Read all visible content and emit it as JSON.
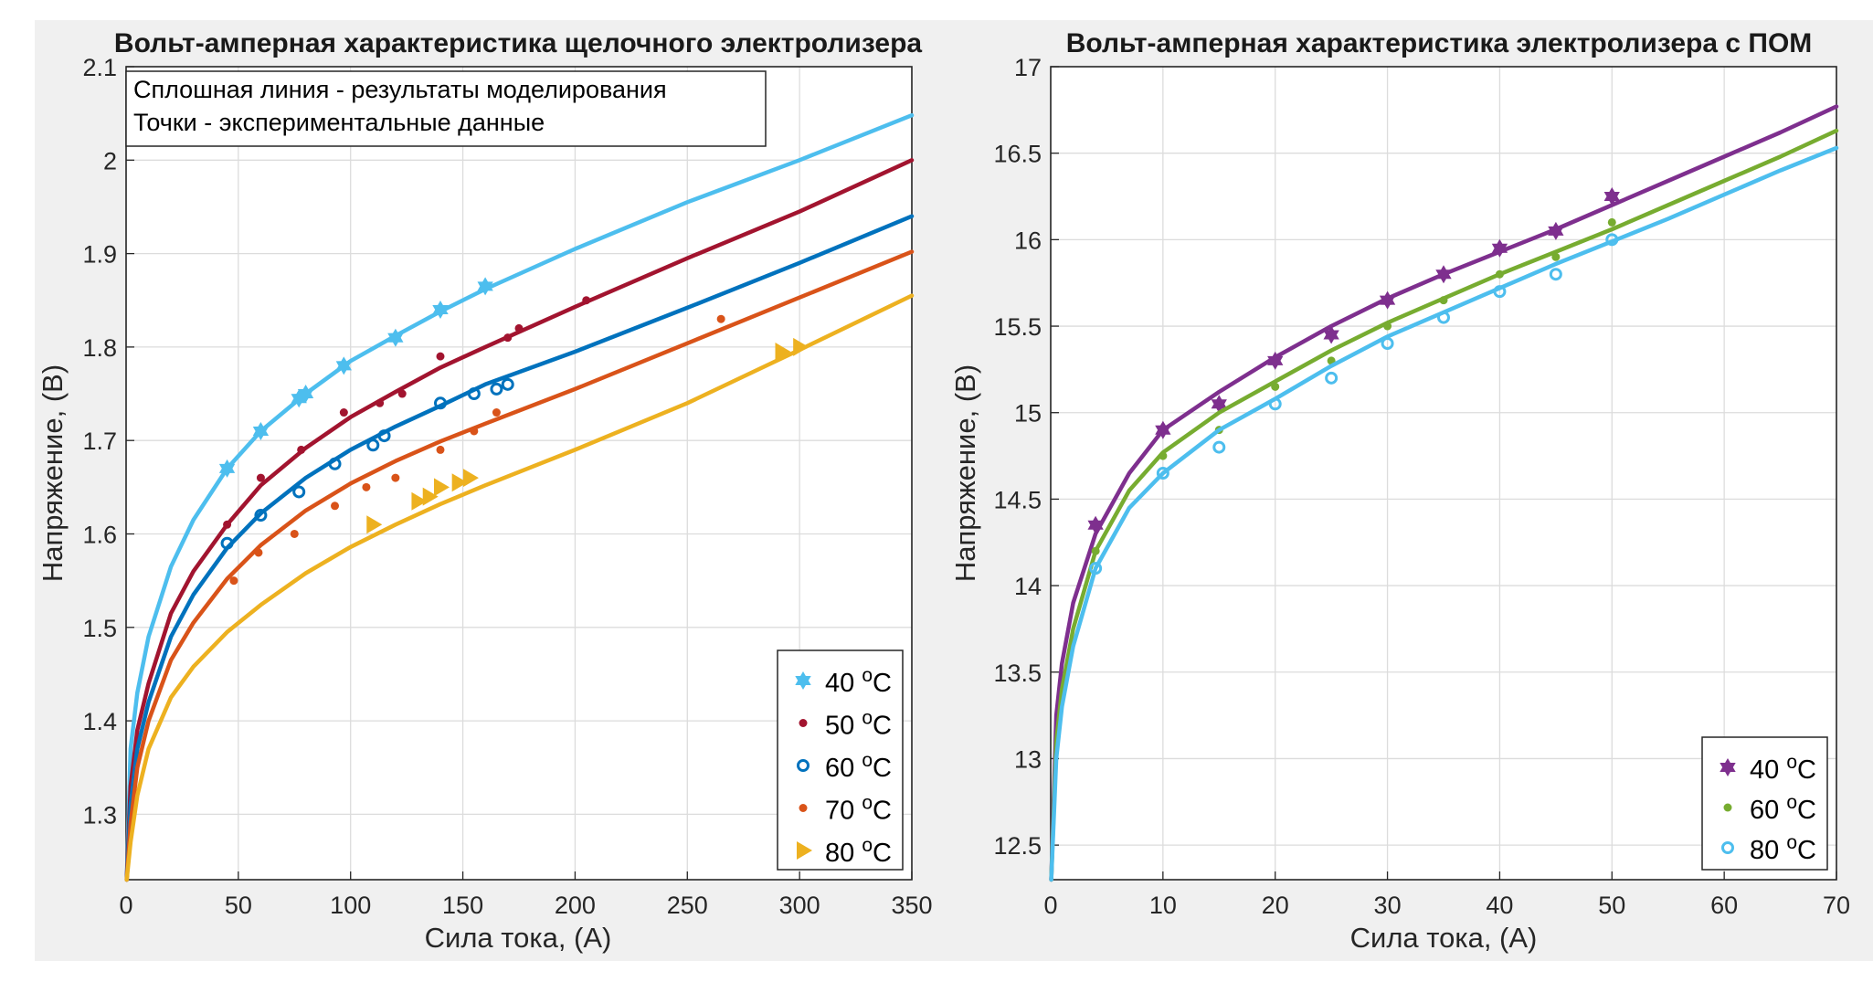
{
  "chart_data": [
    {
      "type": "line",
      "title": "Вольт-амперная характеристика щелочного электролизера",
      "xlabel": "Сила тока, (А)",
      "ylabel": "Напряжение, (В)",
      "xlim": [
        0,
        350
      ],
      "ylim": [
        1.23,
        2.1
      ],
      "xticks": [
        0,
        50,
        100,
        150,
        200,
        250,
        300,
        350
      ],
      "xtick_labels": [
        "0",
        "50",
        "100",
        "150",
        "200",
        "250",
        "300",
        "350"
      ],
      "yticks": [
        1.3,
        1.4,
        1.5,
        1.6,
        1.7,
        1.8,
        1.9,
        2.0,
        2.1
      ],
      "ytick_labels": [
        "1.3",
        "1.4",
        "1.5",
        "1.6",
        "1.7",
        "1.8",
        "1.9",
        "2",
        "2.1"
      ],
      "grid": true,
      "legend_position": "bottom-right",
      "annotation": [
        "Сплошная линия - результаты моделирования",
        "Точки - экспериментальные данные"
      ],
      "series": [
        {
          "name": "40",
          "unit": "oC",
          "color": "#4DBEEE",
          "marker": "hexagram",
          "curve": {
            "x": [
              0.3,
              2,
              5,
              10,
              20,
              30,
              45,
              60,
              80,
              100,
              120,
              140,
              160,
              200,
              250,
              300,
              350
            ],
            "y": [
              1.23,
              1.37,
              1.43,
              1.49,
              1.565,
              1.615,
              1.67,
              1.71,
              1.75,
              1.785,
              1.812,
              1.838,
              1.862,
              1.905,
              1.955,
              2.0,
              2.048
            ]
          },
          "points": {
            "x": [
              45,
              60,
              77,
              80,
              97,
              120,
              140,
              160
            ],
            "y": [
              1.67,
              1.71,
              1.745,
              1.75,
              1.78,
              1.81,
              1.84,
              1.865
            ]
          }
        },
        {
          "name": "50",
          "unit": "oC",
          "color": "#A2142F",
          "marker": "dot",
          "curve": {
            "x": [
              0.3,
              2,
              5,
              10,
              20,
              30,
              45,
              60,
              80,
              100,
              120,
              140,
              160,
              200,
              250,
              300,
              350
            ],
            "y": [
              1.23,
              1.33,
              1.39,
              1.44,
              1.515,
              1.56,
              1.61,
              1.652,
              1.692,
              1.725,
              1.752,
              1.778,
              1.8,
              1.843,
              1.895,
              1.945,
              2.0
            ]
          },
          "points": {
            "x": [
              45,
              60,
              78,
              97,
              113,
              123,
              140,
              170,
              175,
              205
            ],
            "y": [
              1.61,
              1.66,
              1.69,
              1.73,
              1.74,
              1.75,
              1.79,
              1.81,
              1.82,
              1.85
            ]
          }
        },
        {
          "name": "60",
          "unit": "oC",
          "color": "#0072BD",
          "marker": "circle",
          "curve": {
            "x": [
              0.3,
              2,
              5,
              10,
              20,
              30,
              45,
              60,
              80,
              100,
              120,
              140,
              160,
              200,
              250,
              300,
              350
            ],
            "y": [
              1.23,
              1.31,
              1.37,
              1.42,
              1.49,
              1.535,
              1.585,
              1.622,
              1.66,
              1.69,
              1.715,
              1.737,
              1.76,
              1.795,
              1.842,
              1.89,
              1.94
            ]
          },
          "points": {
            "x": [
              45,
              60,
              77,
              93,
              110,
              115,
              140,
              155,
              165,
              170
            ],
            "y": [
              1.59,
              1.62,
              1.645,
              1.675,
              1.695,
              1.705,
              1.74,
              1.75,
              1.755,
              1.76
            ]
          }
        },
        {
          "name": "70",
          "unit": "oC",
          "color": "#D95319",
          "marker": "dot",
          "curve": {
            "x": [
              0.3,
              2,
              5,
              10,
              20,
              30,
              45,
              60,
              80,
              100,
              120,
              140,
              160,
              200,
              250,
              300,
              350
            ],
            "y": [
              1.23,
              1.29,
              1.35,
              1.4,
              1.465,
              1.505,
              1.552,
              1.588,
              1.625,
              1.654,
              1.678,
              1.699,
              1.718,
              1.755,
              1.804,
              1.853,
              1.902
            ]
          },
          "points": {
            "x": [
              48,
              59,
              75,
              93,
              107,
              120,
              140,
              155,
              165,
              265
            ],
            "y": [
              1.55,
              1.58,
              1.6,
              1.63,
              1.65,
              1.66,
              1.69,
              1.71,
              1.73,
              1.83
            ]
          }
        },
        {
          "name": "80",
          "unit": "oC",
          "color": "#EDB120",
          "marker": "triangle-right",
          "curve": {
            "x": [
              0.3,
              2,
              5,
              10,
              20,
              30,
              45,
              60,
              80,
              100,
              120,
              140,
              160,
              200,
              250,
              300,
              350
            ],
            "y": [
              1.23,
              1.27,
              1.32,
              1.37,
              1.425,
              1.458,
              1.495,
              1.524,
              1.558,
              1.586,
              1.61,
              1.632,
              1.652,
              1.69,
              1.74,
              1.797,
              1.855
            ]
          },
          "points": {
            "x": [
              110,
              130,
              135,
              140,
              148,
              153,
              292,
              300
            ],
            "y": [
              1.61,
              1.635,
              1.64,
              1.65,
              1.655,
              1.66,
              1.795,
              1.8
            ]
          }
        }
      ]
    },
    {
      "type": "line",
      "title": "Вольт-амперная характеристика электролизера с ПОМ",
      "xlabel": "Сила тока, (А)",
      "ylabel": "Напряжение, (В)",
      "xlim": [
        0,
        70
      ],
      "ylim": [
        12.3,
        17
      ],
      "xticks": [
        0,
        10,
        20,
        30,
        40,
        50,
        60,
        70
      ],
      "xtick_labels": [
        "0",
        "10",
        "20",
        "30",
        "40",
        "50",
        "60",
        "70"
      ],
      "yticks": [
        12.5,
        13,
        13.5,
        14,
        14.5,
        15,
        15.5,
        16,
        16.5,
        17
      ],
      "ytick_labels": [
        "12.5",
        "13",
        "13.5",
        "14",
        "14.5",
        "15",
        "15.5",
        "16",
        "16.5",
        "17"
      ],
      "grid": true,
      "legend_position": "bottom-right",
      "series": [
        {
          "name": "40",
          "unit": "oC",
          "color": "#7E2F8E",
          "marker": "hexagram",
          "curve": {
            "x": [
              0.05,
              0.5,
              1,
              2,
              4,
              7,
              10,
              15,
              20,
              25,
              30,
              35,
              40,
              45,
              50,
              55,
              60,
              65,
              70
            ],
            "y": [
              12.3,
              13.25,
              13.55,
              13.9,
              14.3,
              14.65,
              14.9,
              15.12,
              15.32,
              15.5,
              15.66,
              15.8,
              15.93,
              16.06,
              16.2,
              16.34,
              16.48,
              16.62,
              16.77
            ]
          },
          "points": {
            "x": [
              4,
              10,
              15,
              20,
              25,
              30,
              35,
              40,
              45,
              50
            ],
            "y": [
              14.35,
              14.9,
              15.05,
              15.3,
              15.45,
              15.65,
              15.8,
              15.95,
              16.05,
              16.25
            ]
          }
        },
        {
          "name": "60",
          "unit": "oC",
          "color": "#77AC30",
          "marker": "dot",
          "curve": {
            "x": [
              0.05,
              0.5,
              1,
              2,
              4,
              7,
              10,
              15,
              20,
              25,
              30,
              35,
              40,
              45,
              50,
              55,
              60,
              65,
              70
            ],
            "y": [
              12.3,
              13.1,
              13.4,
              13.75,
              14.2,
              14.55,
              14.77,
              15.0,
              15.18,
              15.36,
              15.52,
              15.66,
              15.8,
              15.93,
              16.06,
              16.2,
              16.34,
              16.48,
              16.63
            ]
          },
          "points": {
            "x": [
              4,
              10,
              15,
              20,
              25,
              30,
              35,
              40,
              45,
              50
            ],
            "y": [
              14.2,
              14.75,
              14.9,
              15.15,
              15.3,
              15.5,
              15.65,
              15.8,
              15.9,
              16.1
            ]
          }
        },
        {
          "name": "80",
          "unit": "oC",
          "color": "#4DBEEE",
          "marker": "circle",
          "curve": {
            "x": [
              0.05,
              0.5,
              1,
              2,
              4,
              7,
              10,
              15,
              20,
              25,
              30,
              35,
              40,
              45,
              50,
              55,
              60,
              65,
              70
            ],
            "y": [
              12.3,
              13.0,
              13.3,
              13.65,
              14.1,
              14.45,
              14.65,
              14.9,
              15.08,
              15.27,
              15.44,
              15.58,
              15.72,
              15.86,
              15.99,
              16.12,
              16.26,
              16.4,
              16.53
            ]
          },
          "points": {
            "x": [
              4,
              10,
              15,
              20,
              25,
              30,
              35,
              40,
              45,
              50
            ],
            "y": [
              14.1,
              14.65,
              14.8,
              15.05,
              15.2,
              15.4,
              15.55,
              15.7,
              15.8,
              16.0
            ]
          }
        }
      ]
    }
  ]
}
